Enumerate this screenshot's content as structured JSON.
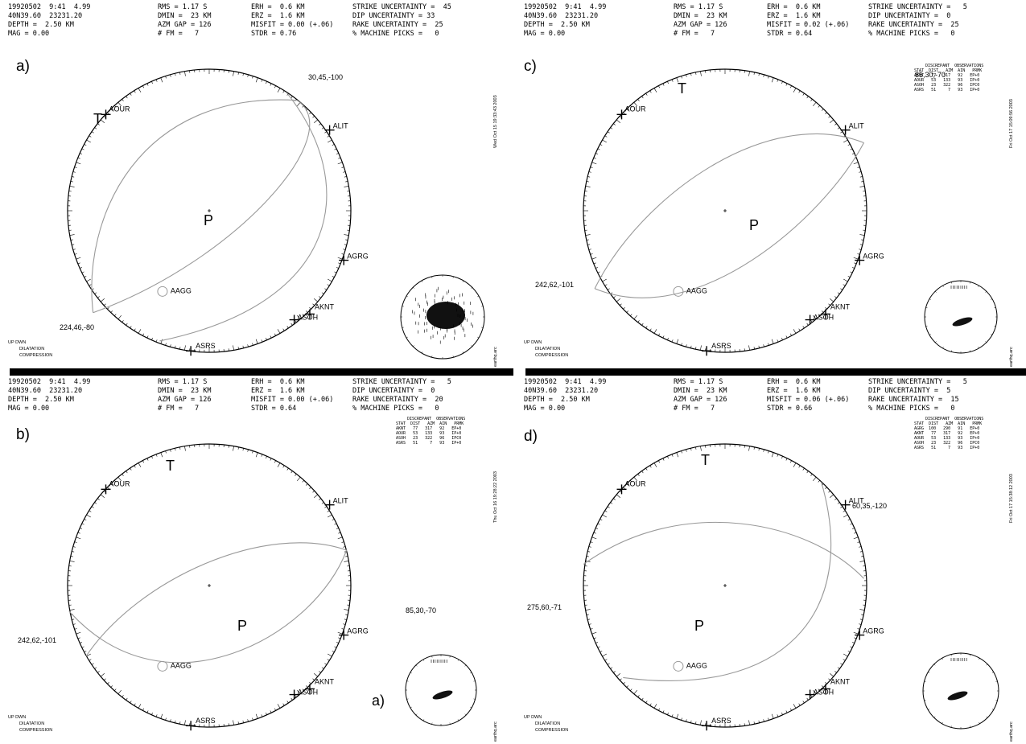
{
  "panels": [
    {
      "id": "a",
      "letter": "a)",
      "header": {
        "c1": [
          "19920502  9:41  4.99",
          "40N39.60  23231.20",
          "DEPTH =  2.50 KM",
          "MAG = 0.00"
        ],
        "c2": [
          "RMS = 1.17 S",
          "DMIN =  23 KM",
          "AZM GAP = 126",
          "# FM =   7"
        ],
        "c3": [
          "ERH =  0.6 KM",
          "ERZ =  1.6 KM",
          "MISFIT = 0.00 (+.06)",
          "STDR = 0.76"
        ],
        "c4": [
          "STRIKE UNCERTAINTY =  45",
          "DIP UNCERTAINTY = 33",
          "RAKE UNCERTAINTY =  25",
          "% MACHINE PICKS =   0"
        ]
      },
      "stamp": "Wed Oct 15 19:33:43 2003",
      "sol1": "30,45,-100",
      "sol2": "224,46,-80",
      "T": "T",
      "P": "P",
      "stations": {
        "aour": "AOUR",
        "alit": "ALIT",
        "agrg": "AGRG",
        "aagg": "AAGG",
        "aknt": "AKNT",
        "asoh": "ASOH",
        "asrs": "ASRS"
      }
    },
    {
      "id": "b",
      "letter": "b)",
      "header": {
        "c1": [
          "19920502  9:41  4.99",
          "40N39.60  23231.20",
          "DEPTH =  2.50 KM",
          "MAG = 0.00"
        ],
        "c2": [
          "RMS = 1.17 S",
          "DMIN =  23 KM",
          "AZM GAP = 126",
          "# FM =   7"
        ],
        "c3": [
          "ERH =  0.6 KM",
          "ERZ =  1.6 KM",
          "MISFIT = 0.00 (+.06)",
          "STDR = 0.64"
        ],
        "c4": [
          "STRIKE UNCERTAINTY =   5",
          "DIP UNCERTAINTY =  0",
          "RAKE UNCERTAINTY =  20",
          "% MACHINE PICKS =   0"
        ]
      },
      "stamp": "Thu Oct 16 19:28:22 2003",
      "sol1": "85,30,-70",
      "sol2": "242,62,-101",
      "T": "T",
      "P": "P",
      "small_label": "a)",
      "stations": {
        "aour": "AOUR",
        "alit": "ALIT",
        "agrg": "AGRG",
        "aagg": "AAGG",
        "aknt": "AKNT",
        "asoh": "ASOH",
        "asrs": "ASRS"
      },
      "discrepant": {
        "title": "DISCREPANT  OBSERVATIONS",
        "header": "STAT  DIST   AZM  AIN   PRMK",
        "rows": [
          "AKNT   77   317   92   EP+0",
          "AOUR   53   133   93   IP+0",
          "ASOH   23   322   96   IPC0",
          "ASRS   51     7   93   IP+0"
        ]
      }
    },
    {
      "id": "c",
      "letter": "c)",
      "header": {
        "c1": [
          "19920502  9:41  4.99",
          "40N39.60  23231.20",
          "DEPTH =  2.50 KM",
          "MAG = 0.00"
        ],
        "c2": [
          "RMS = 1.17 S",
          "DMIN =  23 KM",
          "AZM GAP = 126",
          "# FM =   7"
        ],
        "c3": [
          "ERH =  0.6 KM",
          "ERZ =  1.6 KM",
          "MISFIT = 0.02 (+.06)",
          "STDR = 0.64"
        ],
        "c4": [
          "STRIKE UNCERTAINTY =   5",
          "DIP UNCERTAINTY =  0",
          "RAKE UNCERTAINTY =  25",
          "% MACHINE PICKS =   0"
        ]
      },
      "stamp": "Fri Oct 17 15:09:56 2003",
      "sol1": "85,30,-70",
      "sol2": "242,62,-101",
      "T": "T",
      "P": "P",
      "stations": {
        "aour": "AOUR",
        "alit": "ALIT",
        "agrg": "AGRG",
        "aagg": "AAGG",
        "aknt": "AKNT",
        "asoh": "ASOH",
        "asrs": "ASRS"
      },
      "discrepant": {
        "title": "DISCREPANT  OBSERVATIONS",
        "header": "STAT  DIST   AZM  AIN   PRMK",
        "rows": [
          "AKNT   77   317   92   EP+0",
          "AOUR   53   133   93   IP+0",
          "ASOH   23   322   96   IPC0",
          "ASRS   51     7   93   IP+0"
        ]
      }
    },
    {
      "id": "d",
      "letter": "d)",
      "header": {
        "c1": [
          "19920502  9:41  4.99",
          "40N39.60  23231.20",
          "DEPTH =  2.50 KM",
          "MAG = 0.00"
        ],
        "c2": [
          "RMS = 1.17 S",
          "DMIN =  23 KM",
          "AZM GAP = 126",
          "# FM =   7"
        ],
        "c3": [
          "ERH =  0.6 KM",
          "ERZ =  1.6 KM",
          "MISFIT = 0.06 (+.06)",
          "STDR = 0.66"
        ],
        "c4": [
          "STRIKE UNCERTAINTY =   5",
          "DIP UNCERTAINTY =  5",
          "RAKE UNCERTAINTY =  15",
          "% MACHINE PICKS =   0"
        ]
      },
      "stamp": "Fri Oct 17 15:38:12 2003",
      "sol1": "60,35,-120",
      "sol2": "275,60,-71",
      "T": "T",
      "P": "P",
      "stations": {
        "aour": "AOUR",
        "alit": "ALIT",
        "agrg": "AGRG",
        "aagg": "AAGG",
        "aknt": "AKNT",
        "asoh": "ASOH",
        "asrs": "ASRS"
      },
      "discrepant": {
        "title": "DISCREPANT  OBSERVATIONS",
        "header": "STAT  DIST   AZM  AIN   PRMK",
        "rows": [
          "AGRG  100   290   91   EP+0",
          "AKNT   77   317   92   EP+0",
          "AOUR   53   133   93   IP+0",
          "ASOH   23   322   96   IPC0",
          "ASRS   51     7   93   IP+0"
        ]
      }
    }
  ],
  "legend": {
    "title": "UP DWN",
    "dilatation": "DILATATION",
    "compression": "COMPRESSION"
  },
  "file_label": "earthq.arc"
}
